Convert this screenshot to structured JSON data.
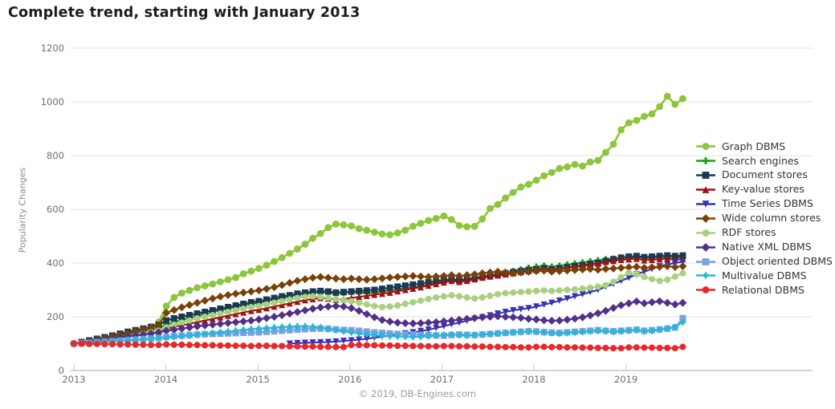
{
  "title": "Complete trend, starting with January 2013",
  "footer": "© 2019, DB-Engines.com",
  "chart_data": {
    "type": "line",
    "title": "Complete trend, starting with January 2013",
    "xlabel": "",
    "ylabel": "Popularity Changes",
    "ylim": [
      0,
      1200
    ],
    "yticks": [
      0,
      200,
      400,
      600,
      800,
      1000,
      1200
    ],
    "xticks": [
      "2013",
      "2014",
      "2015",
      "2016",
      "2017",
      "2018",
      "2019"
    ],
    "x_start": "2013-01",
    "x_end": "2019-08",
    "x_interval": "monthly",
    "grid": true,
    "legend_position": "right",
    "grid_color": "#e0e0e0",
    "axis_color": "#aaaaaa",
    "tick_text_color": "#6e6e6e",
    "series": [
      {
        "name": "Graph DBMS",
        "color": "#8CC63B",
        "marker": "circle",
        "values": [
          100,
          104,
          108,
          113,
          118,
          124,
          130,
          138,
          146,
          155,
          162,
          180,
          240,
          272,
          288,
          298,
          308,
          315,
          322,
          330,
          338,
          346,
          360,
          370,
          380,
          392,
          406,
          420,
          436,
          452,
          470,
          492,
          510,
          532,
          545,
          542,
          538,
          528,
          522,
          515,
          508,
          505,
          512,
          522,
          537,
          548,
          558,
          566,
          575,
          562,
          540,
          535,
          537,
          564,
          603,
          618,
          642,
          663,
          683,
          693,
          708,
          725,
          737,
          752,
          758,
          767,
          761,
          776,
          782,
          812,
          842,
          896,
          922,
          931,
          946,
          955,
          982,
          1021,
          991,
          1012
        ]
      },
      {
        "name": "Search engines",
        "color": "#1AA11A",
        "marker": "plus",
        "values": [
          100,
          103,
          107,
          112,
          116,
          121,
          127,
          133,
          139,
          146,
          152,
          158,
          170,
          180,
          188,
          196,
          203,
          210,
          217,
          224,
          230,
          236,
          242,
          248,
          252,
          258,
          264,
          270,
          276,
          282,
          287,
          290,
          292,
          290,
          288,
          290,
          292,
          290,
          288,
          290,
          294,
          298,
          302,
          306,
          310,
          315,
          320,
          326,
          330,
          334,
          330,
          334,
          340,
          346,
          352,
          358,
          364,
          370,
          376,
          382,
          386,
          390,
          386,
          390,
          394,
          398,
          402,
          406,
          410,
          414,
          416,
          418,
          420,
          422,
          418,
          420,
          422,
          424,
          420,
          422
        ]
      },
      {
        "name": "Document stores",
        "color": "#1B3A52",
        "marker": "square",
        "values": [
          100,
          106,
          112,
          118,
          124,
          130,
          137,
          144,
          150,
          156,
          162,
          170,
          186,
          194,
          200,
          206,
          212,
          218,
          224,
          230,
          236,
          242,
          248,
          254,
          258,
          264,
          270,
          276,
          280,
          286,
          290,
          294,
          296,
          294,
          290,
          292,
          294,
          296,
          298,
          300,
          304,
          308,
          312,
          316,
          320,
          324,
          328,
          332,
          336,
          340,
          336,
          340,
          344,
          350,
          354,
          358,
          362,
          366,
          370,
          374,
          376,
          380,
          376,
          380,
          384,
          388,
          392,
          396,
          400,
          408,
          414,
          420,
          424,
          426,
          422,
          424,
          426,
          428,
          426,
          428
        ]
      },
      {
        "name": "Key-value stores",
        "color": "#9E1212",
        "marker": "triangle-up",
        "values": [
          100,
          102,
          105,
          108,
          112,
          116,
          120,
          125,
          130,
          135,
          140,
          145,
          155,
          162,
          168,
          174,
          180,
          186,
          192,
          198,
          204,
          210,
          216,
          222,
          226,
          232,
          238,
          244,
          250,
          256,
          262,
          266,
          270,
          268,
          264,
          266,
          270,
          274,
          278,
          282,
          286,
          290,
          295,
          300,
          305,
          310,
          316,
          322,
          328,
          334,
          330,
          334,
          340,
          346,
          350,
          354,
          358,
          362,
          366,
          370,
          374,
          378,
          374,
          378,
          382,
          386,
          390,
          394,
          398,
          404,
          408,
          412,
          414,
          416,
          410,
          412,
          414,
          416,
          412,
          415
        ]
      },
      {
        "name": "Time Series DBMS",
        "color": "#3730B8",
        "marker": "triangle-down",
        "values": [
          null,
          null,
          null,
          null,
          null,
          null,
          null,
          null,
          null,
          null,
          null,
          null,
          null,
          null,
          null,
          null,
          null,
          null,
          null,
          null,
          null,
          null,
          null,
          null,
          null,
          null,
          null,
          null,
          100,
          102,
          103,
          104,
          105,
          106,
          108,
          110,
          112,
          115,
          118,
          122,
          126,
          130,
          134,
          138,
          142,
          147,
          152,
          158,
          165,
          172,
          178,
          185,
          192,
          198,
          205,
          212,
          218,
          224,
          228,
          232,
          238,
          245,
          252,
          260,
          268,
          276,
          284,
          292,
          300,
          312,
          322,
          334,
          345,
          358,
          368,
          378,
          388,
          395,
          400,
          405
        ]
      },
      {
        "name": "Wide column stores",
        "color": "#7A4009",
        "marker": "diamond",
        "values": [
          100,
          104,
          109,
          114,
          120,
          126,
          132,
          138,
          145,
          152,
          160,
          168,
          215,
          225,
          235,
          244,
          252,
          260,
          268,
          275,
          281,
          286,
          290,
          294,
          298,
          304,
          310,
          318,
          326,
          334,
          340,
          345,
          348,
          345,
          342,
          340,
          342,
          340,
          338,
          340,
          343,
          346,
          348,
          350,
          352,
          350,
          348,
          350,
          352,
          355,
          352,
          355,
          358,
          362,
          365,
          368,
          365,
          362,
          365,
          368,
          370,
          372,
          368,
          370,
          372,
          374,
          376,
          378,
          375,
          378,
          380,
          382,
          384,
          386,
          382,
          384,
          386,
          388,
          385,
          388
        ]
      },
      {
        "name": "RDF stores",
        "color": "#A9CF7F",
        "marker": "circle",
        "values": [
          100,
          102,
          105,
          108,
          112,
          116,
          120,
          125,
          130,
          136,
          142,
          148,
          160,
          170,
          178,
          186,
          194,
          200,
          206,
          212,
          218,
          224,
          230,
          236,
          240,
          246,
          252,
          258,
          264,
          270,
          274,
          276,
          274,
          270,
          266,
          262,
          258,
          252,
          246,
          240,
          236,
          238,
          242,
          248,
          254,
          260,
          266,
          272,
          276,
          280,
          276,
          272,
          268,
          272,
          278,
          284,
          288,
          290,
          292,
          294,
          296,
          298,
          296,
          298,
          300,
          302,
          305,
          308,
          312,
          318,
          330,
          348,
          364,
          358,
          348,
          340,
          334,
          338,
          350,
          362
        ]
      },
      {
        "name": "Native XML DBMS",
        "color": "#503088",
        "marker": "diamond",
        "values": [
          100,
          103,
          106,
          110,
          114,
          118,
          122,
          126,
          130,
          134,
          138,
          142,
          148,
          152,
          156,
          160,
          164,
          168,
          171,
          174,
          177,
          180,
          183,
          186,
          190,
          195,
          200,
          206,
          212,
          218,
          224,
          230,
          235,
          238,
          240,
          238,
          232,
          222,
          210,
          198,
          188,
          182,
          178,
          176,
          175,
          176,
          178,
          180,
          183,
          186,
          189,
          192,
          195,
          198,
          200,
          202,
          200,
          198,
          196,
          192,
          190,
          187,
          185,
          186,
          189,
          193,
          198,
          205,
          213,
          222,
          233,
          243,
          250,
          257,
          250,
          254,
          258,
          252,
          246,
          252
        ]
      },
      {
        "name": "Object oriented DBMS",
        "color": "#78A3DC",
        "marker": "square",
        "values": [
          100,
          101,
          103,
          105,
          107,
          109,
          111,
          113,
          115,
          117,
          119,
          121,
          125,
          128,
          130,
          132,
          134,
          135,
          136,
          137,
          138,
          139,
          140,
          141,
          142,
          144,
          146,
          148,
          150,
          152,
          154,
          155,
          156,
          155,
          153,
          151,
          150,
          148,
          145,
          142,
          140,
          138,
          136,
          135,
          134,
          133,
          132,
          131,
          130,
          132,
          134,
          133,
          132,
          134,
          136,
          138,
          140,
          142,
          144,
          146,
          145,
          143,
          141,
          140,
          142,
          144,
          146,
          148,
          150,
          148,
          146,
          148,
          150,
          152,
          148,
          150,
          153,
          156,
          160,
          195
        ]
      },
      {
        "name": "Multivalue DBMS",
        "color": "#2AB6D9",
        "marker": "star4",
        "values": [
          100,
          101,
          102,
          104,
          106,
          108,
          110,
          112,
          114,
          116,
          118,
          120,
          122,
          125,
          128,
          130,
          133,
          136,
          139,
          142,
          145,
          148,
          151,
          154,
          156,
          158,
          160,
          162,
          163,
          164,
          165,
          163,
          160,
          155,
          150,
          146,
          142,
          138,
          135,
          132,
          130,
          128,
          127,
          126,
          125,
          126,
          128,
          130,
          132,
          134,
          132,
          130,
          132,
          134,
          136,
          138,
          140,
          142,
          144,
          146,
          144,
          142,
          140,
          138,
          140,
          142,
          144,
          146,
          148,
          146,
          144,
          146,
          148,
          150,
          146,
          148,
          152,
          156,
          162,
          180
        ]
      },
      {
        "name": "Relational DBMS",
        "color": "#E8282B",
        "marker": "circle",
        "values": [
          100,
          100,
          99,
          99,
          98,
          98,
          97,
          97,
          96,
          96,
          95,
          95,
          97,
          96,
          96,
          95,
          95,
          94,
          94,
          93,
          93,
          92,
          92,
          91,
          92,
          92,
          91,
          91,
          90,
          90,
          89,
          89,
          88,
          88,
          87,
          87,
          95,
          95,
          94,
          94,
          93,
          93,
          92,
          92,
          91,
          91,
          90,
          90,
          91,
          91,
          90,
          90,
          89,
          89,
          88,
          88,
          87,
          87,
          86,
          86,
          88,
          88,
          87,
          87,
          86,
          86,
          85,
          85,
          84,
          84,
          83,
          83,
          86,
          86,
          85,
          85,
          84,
          84,
          83,
          88
        ]
      }
    ]
  }
}
